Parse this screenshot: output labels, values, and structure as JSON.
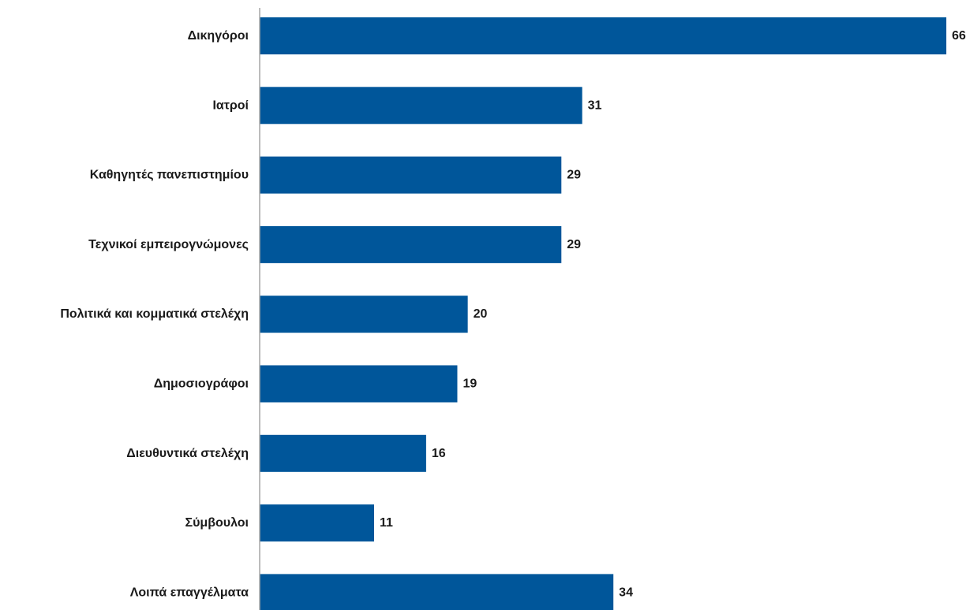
{
  "chart_data": {
    "type": "bar",
    "orientation": "horizontal",
    "categories": [
      "Δικηγόροι",
      "Ιατροί",
      "Καθηγητές πανεπιστημίου",
      "Τεχνικοί εμπειρογνώμονες",
      "Πολιτικά και κομματικά στελέχη",
      "Δημοσιογράφοι",
      "Διευθυντικά στελέχη",
      "Σύμβουλοι",
      "Λοιπά επαγγέλματα"
    ],
    "values": [
      66,
      31,
      29,
      29,
      20,
      19,
      16,
      11,
      34
    ],
    "data_labels": [
      "66",
      "31",
      "29",
      "29",
      "20",
      "19",
      "16",
      "11",
      "34"
    ],
    "xlim": [
      0,
      66
    ],
    "bar_color": "#00569a",
    "axis_color": "#a6a6a6",
    "grid": false,
    "legend": "none"
  }
}
